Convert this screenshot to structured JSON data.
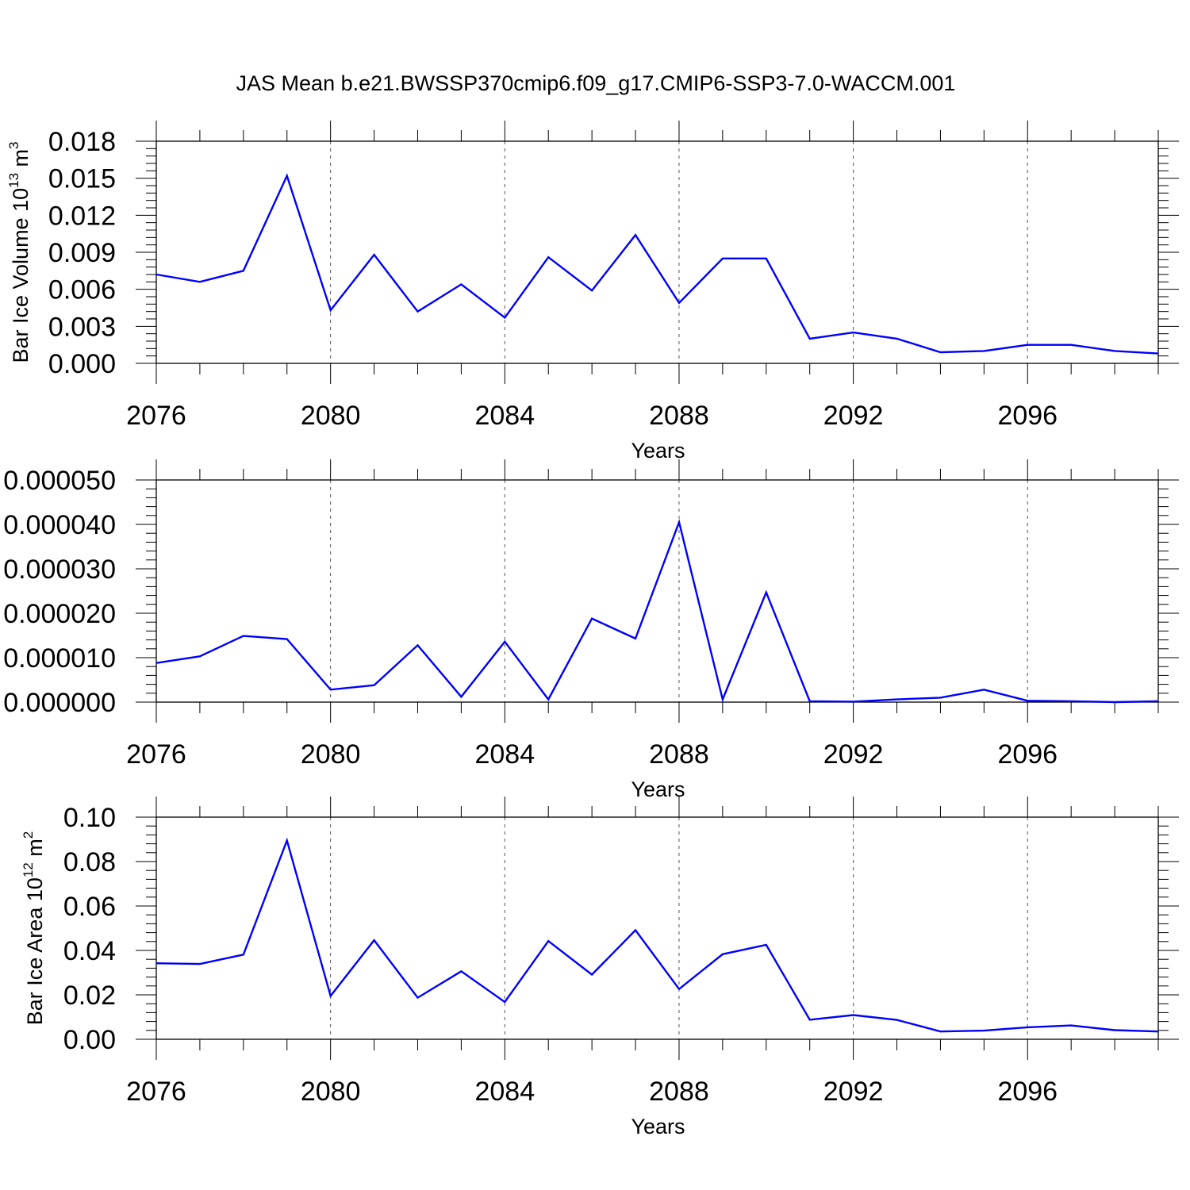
{
  "title": "JAS Mean b.e21.BWSSP370cmip6.f09_g17.CMIP6-SSP3-7.0-WACCM.001",
  "line_color": "#0000ff",
  "chart_data": [
    {
      "type": "line",
      "ylabel": {
        "base": "Bar Ice Volume 10",
        "exp": "13",
        "unit": " m",
        "unit_exp": "3"
      },
      "xlabel": "Years",
      "xlim": [
        2076,
        2099
      ],
      "ylim": [
        0,
        0.018
      ],
      "x_ticks": [
        "2076",
        "2080",
        "2084",
        "2088",
        "2092",
        "2096"
      ],
      "y_ticks": [
        "0.000",
        "0.003",
        "0.006",
        "0.009",
        "0.012",
        "0.015",
        "0.018"
      ],
      "vertical_grid": "dashed",
      "series": [
        {
          "x": [
            2076,
            2077,
            2078,
            2079,
            2080,
            2081,
            2082,
            2083,
            2084,
            2085,
            2086,
            2087,
            2088,
            2089,
            2090,
            2091,
            2092,
            2093,
            2094,
            2095,
            2096,
            2097,
            2098,
            2099
          ],
          "values": [
            0.0072,
            0.0066,
            0.0075,
            0.0152,
            0.0043,
            0.0088,
            0.0042,
            0.0064,
            0.0037,
            0.0086,
            0.0059,
            0.0104,
            0.0049,
            0.0085,
            0.0085,
            0.002,
            0.0025,
            0.002,
            0.0009,
            0.001,
            0.0015,
            0.0015,
            0.001,
            0.0008
          ]
        }
      ]
    },
    {
      "type": "line",
      "ylabel": {
        "base": "",
        "exp": "",
        "unit": "",
        "unit_exp": ""
      },
      "xlabel": "Years",
      "xlim": [
        2076,
        2099
      ],
      "ylim": [
        0,
        5e-05
      ],
      "x_ticks": [
        "2076",
        "2080",
        "2084",
        "2088",
        "2092",
        "2096"
      ],
      "y_ticks": [
        "0.000000",
        "0.000010",
        "0.000020",
        "0.000030",
        "0.000040",
        "0.000050"
      ],
      "vertical_grid": "dashed",
      "series": [
        {
          "x": [
            2076,
            2077,
            2078,
            2079,
            2080,
            2081,
            2082,
            2083,
            2084,
            2085,
            2086,
            2087,
            2088,
            2089,
            2090,
            2091,
            2092,
            2093,
            2094,
            2095,
            2096,
            2097,
            2098,
            2099
          ],
          "values": [
            8.8e-06,
            1.03e-05,
            1.49e-05,
            1.42e-05,
            2.8e-06,
            3.8e-06,
            1.28e-05,
            1.2e-06,
            1.36e-05,
            6e-07,
            1.88e-05,
            1.43e-05,
            4.05e-05,
            6e-07,
            2.47e-05,
            2e-07,
            1e-07,
            6e-07,
            1e-06,
            2.8e-06,
            3e-07,
            2e-07,
            0.0,
            2e-07
          ]
        }
      ]
    },
    {
      "type": "line",
      "ylabel": {
        "base": "Bar Ice Area 10",
        "exp": "12",
        "unit": " m",
        "unit_exp": "2"
      },
      "xlabel": "Years",
      "xlim": [
        2076,
        2099
      ],
      "ylim": [
        0,
        0.1
      ],
      "x_ticks": [
        "2076",
        "2080",
        "2084",
        "2088",
        "2092",
        "2096"
      ],
      "y_ticks": [
        "0.00",
        "0.02",
        "0.04",
        "0.06",
        "0.08",
        "0.10"
      ],
      "vertical_grid": "dashed",
      "series": [
        {
          "x": [
            2076,
            2077,
            2078,
            2079,
            2080,
            2081,
            2082,
            2083,
            2084,
            2085,
            2086,
            2087,
            2088,
            2089,
            2090,
            2091,
            2092,
            2093,
            2094,
            2095,
            2096,
            2097,
            2098,
            2099
          ],
          "values": [
            0.0342,
            0.0339,
            0.0381,
            0.0895,
            0.0195,
            0.0446,
            0.0187,
            0.0306,
            0.0168,
            0.0442,
            0.0291,
            0.0491,
            0.0226,
            0.0383,
            0.0425,
            0.0088,
            0.0109,
            0.0087,
            0.0035,
            0.0039,
            0.0054,
            0.0062,
            0.0041,
            0.0035
          ]
        }
      ]
    }
  ]
}
